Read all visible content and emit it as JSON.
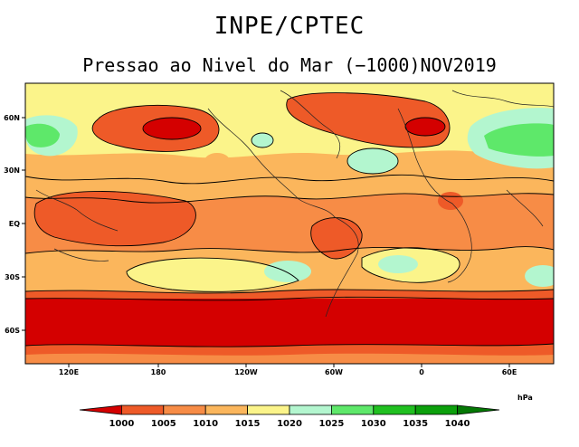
{
  "header": {
    "title": "INPE/CPTEC",
    "subtitle": "Pressao ao Nivel do Mar (−1000)NOV2019"
  },
  "axes": {
    "lat_labels": [
      "60N",
      "30N",
      "EQ",
      "30S",
      "60S"
    ],
    "lon_labels": [
      "120E",
      "180",
      "120W",
      "60W",
      "0",
      "60E"
    ]
  },
  "colorbar": {
    "unit": "hPa",
    "ticks": [
      "1000",
      "1005",
      "1010",
      "1015",
      "1020",
      "1025",
      "1030",
      "1035",
      "1040"
    ],
    "colors": [
      "#d40000",
      "#ee5a28",
      "#f78c46",
      "#fbb65c",
      "#fbf48a",
      "#b3f6cf",
      "#5ee86a",
      "#20c020",
      "#0ca00c",
      "#047804"
    ]
  }
}
